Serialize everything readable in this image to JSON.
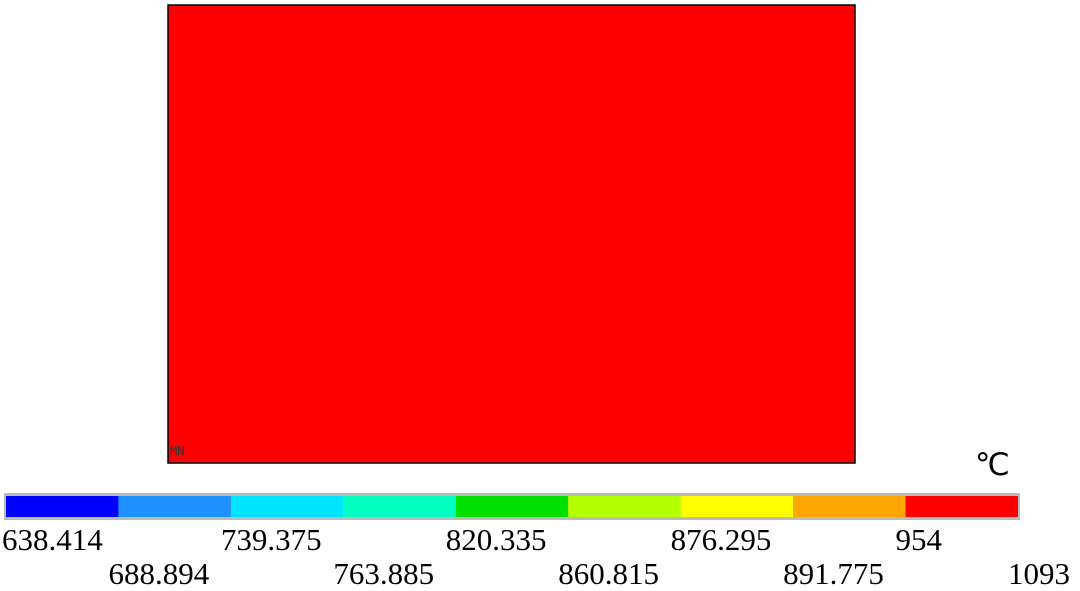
{
  "chart_data": {
    "type": "contour",
    "unit": "℃",
    "plot_label": "MN",
    "bins": [
      638.414,
      688.894,
      739.375,
      763.885,
      820.335,
      860.815,
      876.295,
      891.775,
      954,
      1093
    ],
    "colors": [
      "#0000ff",
      "#1e90ff",
      "#00e5ff",
      "#00ffc0",
      "#00e000",
      "#b4ff00",
      "#ffff00",
      "#ffa500",
      "#ff0000"
    ]
  }
}
